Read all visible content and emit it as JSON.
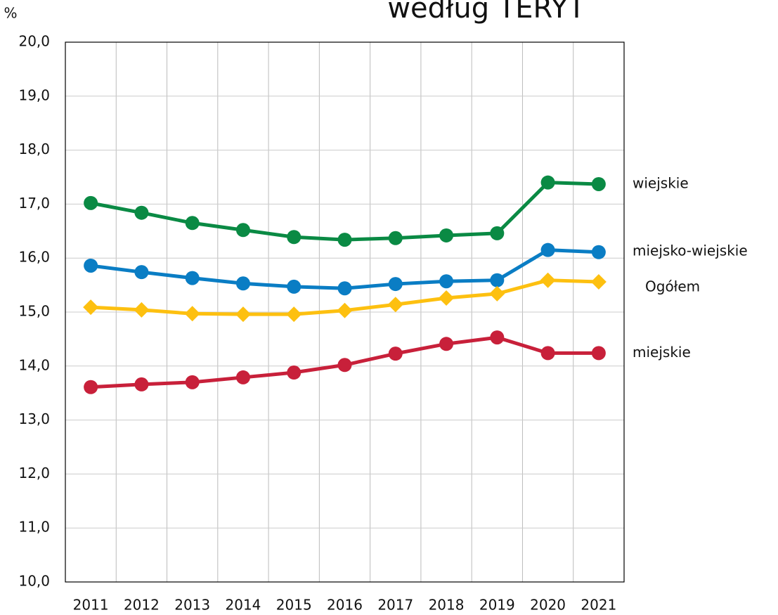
{
  "chart_data": {
    "type": "line",
    "title": "według TERYT",
    "y_label": "%",
    "categories": [
      "2011",
      "2012",
      "2013",
      "2014",
      "2015",
      "2016",
      "2017",
      "2018",
      "2019",
      "2020",
      "2021"
    ],
    "series": [
      {
        "name": "wiejskie",
        "color": "#0a8a44",
        "marker": "circle",
        "values": [
          17.02,
          16.84,
          16.65,
          16.52,
          16.39,
          16.34,
          16.37,
          16.42,
          16.46,
          17.4,
          17.37
        ]
      },
      {
        "name": "miejsko-wiejskie",
        "color": "#0a7dc4",
        "marker": "circle",
        "values": [
          15.86,
          15.74,
          15.63,
          15.53,
          15.47,
          15.44,
          15.52,
          15.57,
          15.59,
          16.15,
          16.11
        ]
      },
      {
        "name": "Ogółem",
        "color": "#fdc010",
        "marker": "diamond",
        "values": [
          15.09,
          15.04,
          14.97,
          14.96,
          14.96,
          15.03,
          15.14,
          15.26,
          15.34,
          15.59,
          15.56
        ]
      },
      {
        "name": "miejskie",
        "color": "#c8203a",
        "marker": "circle",
        "values": [
          13.61,
          13.66,
          13.7,
          13.79,
          13.88,
          14.02,
          14.23,
          14.41,
          14.53,
          14.24,
          14.24
        ]
      }
    ],
    "ylim": [
      10,
      20
    ],
    "yticks": [
      {
        "value": 10,
        "label": "10,0"
      },
      {
        "value": 11,
        "label": "11,0"
      },
      {
        "value": 12,
        "label": "12,0"
      },
      {
        "value": 13,
        "label": "13,0"
      },
      {
        "value": 14,
        "label": "14,0"
      },
      {
        "value": 15,
        "label": "15,0"
      },
      {
        "value": 16,
        "label": "16,0"
      },
      {
        "value": 17,
        "label": "17,0"
      },
      {
        "value": 18,
        "label": "18,0"
      },
      {
        "value": 19,
        "label": "19,0"
      },
      {
        "value": 20,
        "label": "20,0"
      }
    ],
    "grid": true
  }
}
